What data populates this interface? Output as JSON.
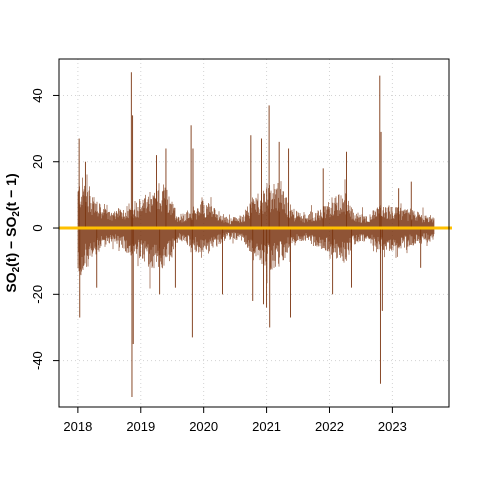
{
  "chart_data": {
    "type": "line",
    "title": "",
    "xlabel": "",
    "ylabel": {
      "parts": [
        {
          "text": "SO",
          "role": "normal"
        },
        {
          "text": "2",
          "role": "sub"
        },
        {
          "text": "(t) − SO",
          "role": "normal"
        },
        {
          "text": "2",
          "role": "sub"
        },
        {
          "text": "(t − 1)",
          "role": "normal"
        }
      ]
    },
    "xlim": [
      2017.7,
      2023.9
    ],
    "ylim": [
      -54,
      51
    ],
    "x_ticks": [
      2018,
      2019,
      2020,
      2021,
      2022,
      2023
    ],
    "x_tick_labels": [
      "2018",
      "2019",
      "2020",
      "2021",
      "2022",
      "2023"
    ],
    "y_ticks": [
      -40,
      -20,
      0,
      20,
      40
    ],
    "y_tick_labels": [
      "-40",
      "-20",
      "0",
      "20",
      "40"
    ],
    "grid": true,
    "reference_line": {
      "y": 0,
      "color": "#FFC000"
    },
    "series": [
      {
        "color": "#7B3510",
        "x_range": [
          2018.0,
          2023.67
        ],
        "note_points": "hourly differenced series; summarized by envelope below",
        "envelope": [
          {
            "x": 2018.0,
            "hi": 14,
            "lo": -16
          },
          {
            "x": 2018.1,
            "hi": 16,
            "lo": -14
          },
          {
            "x": 2018.25,
            "hi": 10,
            "lo": -10
          },
          {
            "x": 2018.4,
            "hi": 6,
            "lo": -6
          },
          {
            "x": 2018.6,
            "hi": 5,
            "lo": -5
          },
          {
            "x": 2018.8,
            "hi": 8,
            "lo": -8
          },
          {
            "x": 2019.0,
            "hi": 9,
            "lo": -10
          },
          {
            "x": 2019.15,
            "hi": 11,
            "lo": -12
          },
          {
            "x": 2019.3,
            "hi": 14,
            "lo": -14
          },
          {
            "x": 2019.45,
            "hi": 12,
            "lo": -11
          },
          {
            "x": 2019.6,
            "hi": 4,
            "lo": -4
          },
          {
            "x": 2019.8,
            "hi": 6,
            "lo": -6
          },
          {
            "x": 2020.0,
            "hi": 9,
            "lo": -9
          },
          {
            "x": 2020.2,
            "hi": 6,
            "lo": -6
          },
          {
            "x": 2020.4,
            "hi": 3,
            "lo": -3
          },
          {
            "x": 2020.6,
            "hi": 4,
            "lo": -4
          },
          {
            "x": 2020.8,
            "hi": 10,
            "lo": -10
          },
          {
            "x": 2021.0,
            "hi": 13,
            "lo": -13
          },
          {
            "x": 2021.2,
            "hi": 14,
            "lo": -12
          },
          {
            "x": 2021.4,
            "hi": 6,
            "lo": -6
          },
          {
            "x": 2021.6,
            "hi": 4,
            "lo": -4
          },
          {
            "x": 2021.8,
            "hi": 6,
            "lo": -6
          },
          {
            "x": 2022.0,
            "hi": 8,
            "lo": -8
          },
          {
            "x": 2022.25,
            "hi": 12,
            "lo": -11
          },
          {
            "x": 2022.4,
            "hi": 5,
            "lo": -5
          },
          {
            "x": 2022.6,
            "hi": 4,
            "lo": -4
          },
          {
            "x": 2022.8,
            "hi": 7,
            "lo": -7
          },
          {
            "x": 2023.0,
            "hi": 7,
            "lo": -7
          },
          {
            "x": 2023.2,
            "hi": 6,
            "lo": -6
          },
          {
            "x": 2023.4,
            "hi": 5,
            "lo": -5
          },
          {
            "x": 2023.67,
            "hi": 4,
            "lo": -4
          }
        ],
        "spikes": [
          {
            "x": 2018.02,
            "y": 27
          },
          {
            "x": 2018.03,
            "y": -27
          },
          {
            "x": 2018.12,
            "y": 20
          },
          {
            "x": 2018.3,
            "y": -18
          },
          {
            "x": 2018.85,
            "y": 47
          },
          {
            "x": 2018.86,
            "y": -51
          },
          {
            "x": 2018.87,
            "y": 34
          },
          {
            "x": 2018.88,
            "y": -35
          },
          {
            "x": 2019.25,
            "y": 22
          },
          {
            "x": 2019.3,
            "y": -20
          },
          {
            "x": 2019.4,
            "y": 24
          },
          {
            "x": 2019.55,
            "y": -18
          },
          {
            "x": 2019.8,
            "y": 31
          },
          {
            "x": 2019.82,
            "y": -33
          },
          {
            "x": 2019.83,
            "y": 24
          },
          {
            "x": 2020.3,
            "y": -20
          },
          {
            "x": 2020.75,
            "y": 28
          },
          {
            "x": 2020.78,
            "y": -22
          },
          {
            "x": 2020.92,
            "y": 27
          },
          {
            "x": 2020.95,
            "y": -23
          },
          {
            "x": 2021.0,
            "y": -24
          },
          {
            "x": 2021.04,
            "y": 37
          },
          {
            "x": 2021.05,
            "y": -30
          },
          {
            "x": 2021.2,
            "y": 26
          },
          {
            "x": 2021.35,
            "y": 24
          },
          {
            "x": 2021.38,
            "y": -27
          },
          {
            "x": 2021.9,
            "y": 18
          },
          {
            "x": 2022.05,
            "y": -20
          },
          {
            "x": 2022.27,
            "y": 23
          },
          {
            "x": 2022.35,
            "y": -18
          },
          {
            "x": 2022.8,
            "y": 46
          },
          {
            "x": 2022.81,
            "y": -47
          },
          {
            "x": 2022.82,
            "y": 29
          },
          {
            "x": 2022.84,
            "y": -25
          },
          {
            "x": 2023.1,
            "y": 12
          },
          {
            "x": 2023.3,
            "y": 14
          },
          {
            "x": 2023.45,
            "y": -12
          }
        ]
      }
    ]
  }
}
